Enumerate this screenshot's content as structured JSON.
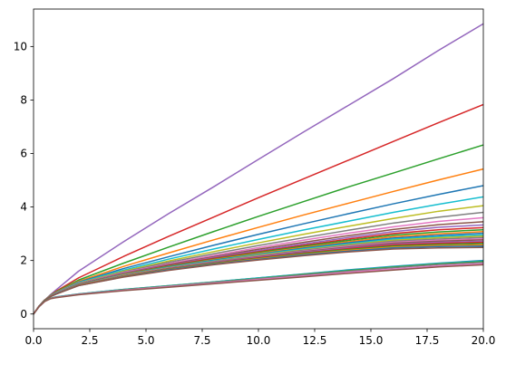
{
  "chart_data": {
    "type": "line",
    "title": "",
    "xlabel": "",
    "ylabel": "",
    "xlim": [
      0,
      20
    ],
    "ylim": [
      -0.55,
      11.4
    ],
    "grid": false,
    "legend": "none",
    "x_ticks": [
      {
        "value": 0,
        "label": "0.0"
      },
      {
        "value": 2.5,
        "label": "2.5"
      },
      {
        "value": 5,
        "label": "5.0"
      },
      {
        "value": 7.5,
        "label": "7.5"
      },
      {
        "value": 10,
        "label": "10.0"
      },
      {
        "value": 12.5,
        "label": "12.5"
      },
      {
        "value": 15,
        "label": "15.0"
      },
      {
        "value": 17.5,
        "label": "17.5"
      },
      {
        "value": 20,
        "label": "20.0"
      }
    ],
    "y_ticks": [
      {
        "value": 0,
        "label": "0"
      },
      {
        "value": 2,
        "label": "2"
      },
      {
        "value": 4,
        "label": "4"
      },
      {
        "value": 6,
        "label": "6"
      },
      {
        "value": 8,
        "label": "8"
      },
      {
        "value": 10,
        "label": "10"
      }
    ],
    "x": [
      0,
      0.25,
      0.5,
      0.75,
      1,
      2,
      4,
      6,
      8,
      10,
      12,
      14,
      16,
      18,
      20
    ],
    "series": [
      {
        "color": "#9467bd",
        "values": [
          0,
          0.3,
          0.52,
          0.72,
          0.9,
          1.6,
          2.7,
          3.75,
          4.75,
          5.78,
          6.8,
          7.8,
          8.8,
          9.85,
          10.85
        ]
      },
      {
        "color": "#d62728",
        "values": [
          0,
          0.3,
          0.52,
          0.7,
          0.85,
          1.35,
          2.15,
          2.9,
          3.62,
          4.35,
          5.05,
          5.75,
          6.45,
          7.15,
          7.83
        ]
      },
      {
        "color": "#2ca02c",
        "values": [
          0,
          0.3,
          0.52,
          0.7,
          0.83,
          1.27,
          1.9,
          2.5,
          3.08,
          3.65,
          4.2,
          4.75,
          5.27,
          5.8,
          6.32
        ]
      },
      {
        "color": "#ff7f0e",
        "values": [
          0,
          0.3,
          0.52,
          0.69,
          0.81,
          1.22,
          1.78,
          2.28,
          2.77,
          3.24,
          3.7,
          4.14,
          4.58,
          5.01,
          5.42
        ]
      },
      {
        "color": "#1f77b4",
        "values": [
          0,
          0.3,
          0.52,
          0.68,
          0.8,
          1.19,
          1.7,
          2.14,
          2.57,
          2.98,
          3.37,
          3.75,
          4.12,
          4.47,
          4.8
        ]
      },
      {
        "color": "#17becf",
        "values": [
          0,
          0.3,
          0.52,
          0.68,
          0.79,
          1.17,
          1.64,
          2.05,
          2.43,
          2.79,
          3.14,
          3.47,
          3.8,
          4.1,
          4.38
        ]
      },
      {
        "color": "#bcbd22",
        "values": [
          0,
          0.3,
          0.52,
          0.67,
          0.78,
          1.15,
          1.6,
          1.98,
          2.33,
          2.66,
          2.98,
          3.28,
          3.57,
          3.84,
          4.05
        ]
      },
      {
        "color": "#7f7f7f",
        "values": [
          0,
          0.3,
          0.52,
          0.67,
          0.78,
          1.14,
          1.57,
          1.93,
          2.25,
          2.56,
          2.85,
          3.13,
          3.4,
          3.62,
          3.8
        ]
      },
      {
        "color": "#e377c2",
        "values": [
          0,
          0.3,
          0.52,
          0.67,
          0.78,
          1.13,
          1.55,
          1.88,
          2.19,
          2.48,
          2.76,
          3.02,
          3.26,
          3.46,
          3.6
        ]
      },
      {
        "color": "#8c564b",
        "values": [
          0,
          0.3,
          0.52,
          0.67,
          0.77,
          1.12,
          1.53,
          1.85,
          2.14,
          2.42,
          2.68,
          2.93,
          3.16,
          3.34,
          3.45
        ]
      },
      {
        "color": "#9467bd",
        "values": [
          0,
          0.3,
          0.52,
          0.66,
          0.77,
          1.12,
          1.52,
          1.83,
          2.11,
          2.37,
          2.62,
          2.86,
          3.08,
          3.24,
          3.33
        ]
      },
      {
        "color": "#d62728",
        "values": [
          0,
          0.3,
          0.52,
          0.66,
          0.77,
          1.11,
          1.5,
          1.81,
          2.08,
          2.33,
          2.57,
          2.8,
          3.01,
          3.15,
          3.23
        ]
      },
      {
        "color": "#2ca02c",
        "values": [
          0,
          0.3,
          0.52,
          0.66,
          0.77,
          1.11,
          1.49,
          1.79,
          2.05,
          2.3,
          2.53,
          2.75,
          2.95,
          3.07,
          3.15
        ]
      },
      {
        "color": "#ff7f0e",
        "values": [
          0,
          0.3,
          0.52,
          0.66,
          0.76,
          1.1,
          1.48,
          1.77,
          2.03,
          2.27,
          2.49,
          2.7,
          2.89,
          3.0,
          3.08
        ]
      },
      {
        "color": "#1f77b4",
        "values": [
          0,
          0.3,
          0.52,
          0.66,
          0.76,
          1.1,
          1.47,
          1.76,
          2.01,
          2.24,
          2.46,
          2.66,
          2.84,
          2.94,
          3.02
        ]
      },
      {
        "color": "#17becf",
        "values": [
          0,
          0.3,
          0.52,
          0.66,
          0.76,
          1.09,
          1.46,
          1.74,
          1.99,
          2.22,
          2.43,
          2.62,
          2.8,
          2.89,
          2.96
        ]
      },
      {
        "color": "#bcbd22",
        "values": [
          0,
          0.3,
          0.52,
          0.66,
          0.76,
          1.09,
          1.45,
          1.73,
          1.97,
          2.2,
          2.4,
          2.59,
          2.76,
          2.85,
          2.91
        ]
      },
      {
        "color": "#7f7f7f",
        "values": [
          0,
          0.3,
          0.52,
          0.66,
          0.76,
          1.09,
          1.44,
          1.72,
          1.96,
          2.18,
          2.38,
          2.56,
          2.72,
          2.8,
          2.86
        ]
      },
      {
        "color": "#e377c2",
        "values": [
          0,
          0.3,
          0.52,
          0.66,
          0.76,
          1.08,
          1.44,
          1.71,
          1.94,
          2.16,
          2.35,
          2.53,
          2.68,
          2.76,
          2.81
        ]
      },
      {
        "color": "#8c564b",
        "values": [
          0,
          0.3,
          0.52,
          0.66,
          0.75,
          1.08,
          1.43,
          1.7,
          1.93,
          2.14,
          2.33,
          2.5,
          2.65,
          2.72,
          2.77
        ]
      },
      {
        "color": "#9467bd",
        "values": [
          0,
          0.3,
          0.52,
          0.66,
          0.75,
          1.08,
          1.42,
          1.69,
          1.92,
          2.12,
          2.31,
          2.47,
          2.61,
          2.68,
          2.72
        ]
      },
      {
        "color": "#d62728",
        "values": [
          0,
          0.3,
          0.52,
          0.65,
          0.75,
          1.07,
          1.41,
          1.68,
          1.9,
          2.1,
          2.28,
          2.44,
          2.58,
          2.64,
          2.68
        ]
      },
      {
        "color": "#2ca02c",
        "values": [
          0,
          0.3,
          0.52,
          0.65,
          0.75,
          1.07,
          1.41,
          1.67,
          1.89,
          2.08,
          2.26,
          2.41,
          2.54,
          2.6,
          2.63
        ]
      },
      {
        "color": "#ff7f0e",
        "values": [
          0,
          0.3,
          0.52,
          0.65,
          0.75,
          1.07,
          1.4,
          1.66,
          1.87,
          2.06,
          2.23,
          2.38,
          2.5,
          2.56,
          2.58
        ]
      },
      {
        "color": "#1f77b4",
        "values": [
          0,
          0.3,
          0.52,
          0.65,
          0.75,
          1.06,
          1.39,
          1.65,
          1.86,
          2.04,
          2.21,
          2.35,
          2.47,
          2.52,
          2.54
        ]
      },
      {
        "color": "#8c564b",
        "values": [
          0,
          0.3,
          0.52,
          0.65,
          0.74,
          1.06,
          1.38,
          1.63,
          1.84,
          2.02,
          2.18,
          2.32,
          2.43,
          2.47,
          2.49
        ]
      },
      {
        "color": "#1f77b4",
        "values": [
          0,
          0.28,
          0.48,
          0.59,
          0.64,
          0.75,
          0.92,
          1.06,
          1.2,
          1.35,
          1.5,
          1.65,
          1.78,
          1.9,
          2.0
        ]
      },
      {
        "color": "#17becf",
        "values": [
          0,
          0.28,
          0.48,
          0.59,
          0.64,
          0.75,
          0.92,
          1.06,
          1.2,
          1.35,
          1.49,
          1.64,
          1.77,
          1.89,
          1.98
        ]
      },
      {
        "color": "#2ca02c",
        "values": [
          0,
          0.28,
          0.48,
          0.59,
          0.63,
          0.74,
          0.91,
          1.05,
          1.19,
          1.33,
          1.48,
          1.62,
          1.75,
          1.87,
          1.96
        ]
      },
      {
        "color": "#7f7f7f",
        "values": [
          0,
          0.28,
          0.47,
          0.58,
          0.63,
          0.74,
          0.9,
          1.04,
          1.18,
          1.32,
          1.46,
          1.6,
          1.73,
          1.85,
          1.93
        ]
      },
      {
        "color": "#e377c2",
        "values": [
          0,
          0.28,
          0.47,
          0.58,
          0.62,
          0.73,
          0.89,
          1.02,
          1.15,
          1.29,
          1.42,
          1.56,
          1.68,
          1.8,
          1.88
        ]
      },
      {
        "color": "#8c564b",
        "values": [
          0,
          0.28,
          0.47,
          0.57,
          0.61,
          0.72,
          0.87,
          1.0,
          1.13,
          1.26,
          1.39,
          1.52,
          1.64,
          1.76,
          1.84
        ]
      }
    ]
  }
}
